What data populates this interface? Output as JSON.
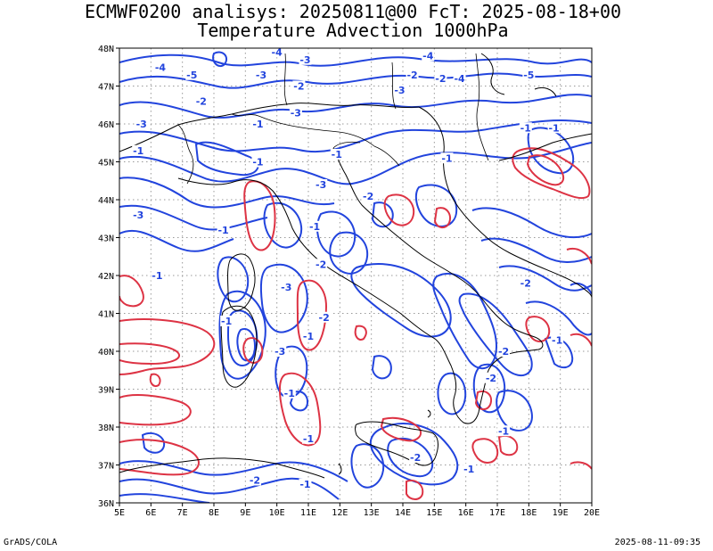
{
  "header": {
    "title": "ECMWF0200 analisys: 20250811@00 FcT: 2025-08-18+00",
    "subtitle": "Temperature Advection 1000hPa"
  },
  "footer": {
    "left": "GrADS/COLA",
    "right": "2025-08-11-09:35"
  },
  "map": {
    "lon_range": [
      5,
      20
    ],
    "lat_range": [
      36,
      48
    ],
    "x_ticks": [
      "5E",
      "6E",
      "7E",
      "8E",
      "9E",
      "10E",
      "11E",
      "12E",
      "13E",
      "14E",
      "15E",
      "16E",
      "17E",
      "18E",
      "19E",
      "20E"
    ],
    "y_ticks": [
      "36N",
      "37N",
      "38N",
      "39N",
      "40N",
      "41N",
      "42N",
      "43N",
      "44N",
      "45N",
      "46N",
      "47N",
      "48N"
    ],
    "grid": "dotted",
    "colors": {
      "negative": "#2244dd",
      "positive": "#dd3344",
      "coast": "#000000",
      "grid": "#999999"
    },
    "contour_labels": [
      {
        "text": "-4",
        "lon": 10.0,
        "lat": 47.9
      },
      {
        "text": "-3",
        "lon": 10.9,
        "lat": 47.7
      },
      {
        "text": "-4",
        "lon": 6.3,
        "lat": 47.5
      },
      {
        "text": "-5",
        "lon": 7.3,
        "lat": 47.3
      },
      {
        "text": "-3",
        "lon": 9.5,
        "lat": 47.3
      },
      {
        "text": "-2",
        "lon": 10.7,
        "lat": 47.0
      },
      {
        "text": "-4",
        "lon": 14.8,
        "lat": 47.8
      },
      {
        "text": "-2",
        "lon": 14.3,
        "lat": 47.3
      },
      {
        "text": "-3",
        "lon": 13.9,
        "lat": 46.9
      },
      {
        "text": "-2",
        "lon": 15.2,
        "lat": 47.2
      },
      {
        "text": "-4",
        "lon": 15.8,
        "lat": 47.2
      },
      {
        "text": "-5",
        "lon": 18.0,
        "lat": 47.3
      },
      {
        "text": "-2",
        "lon": 7.6,
        "lat": 46.6
      },
      {
        "text": "-3",
        "lon": 10.6,
        "lat": 46.3
      },
      {
        "text": "-3",
        "lon": 5.7,
        "lat": 46.0
      },
      {
        "text": "-1",
        "lon": 9.4,
        "lat": 46.0
      },
      {
        "text": "-1",
        "lon": 17.9,
        "lat": 45.9
      },
      {
        "text": "-1",
        "lon": 18.8,
        "lat": 45.9
      },
      {
        "text": "-1",
        "lon": 5.6,
        "lat": 45.3
      },
      {
        "text": "-1",
        "lon": 9.4,
        "lat": 45.0
      },
      {
        "text": "-1",
        "lon": 11.9,
        "lat": 45.2
      },
      {
        "text": "-1",
        "lon": 15.4,
        "lat": 45.1
      },
      {
        "text": "-3",
        "lon": 11.4,
        "lat": 44.4
      },
      {
        "text": "-2",
        "lon": 12.9,
        "lat": 44.1
      },
      {
        "text": "-3",
        "lon": 5.6,
        "lat": 43.6
      },
      {
        "text": "-1",
        "lon": 8.3,
        "lat": 43.2
      },
      {
        "text": "-1",
        "lon": 11.2,
        "lat": 43.3
      },
      {
        "text": "-2",
        "lon": 11.4,
        "lat": 42.3
      },
      {
        "text": "-1",
        "lon": 6.2,
        "lat": 42.0
      },
      {
        "text": "-3",
        "lon": 10.3,
        "lat": 41.7
      },
      {
        "text": "-2",
        "lon": 17.9,
        "lat": 41.8
      },
      {
        "text": "-1",
        "lon": 8.4,
        "lat": 40.8
      },
      {
        "text": "-2",
        "lon": 11.5,
        "lat": 40.9
      },
      {
        "text": "-1",
        "lon": 11.0,
        "lat": 40.4
      },
      {
        "text": "-1",
        "lon": 18.9,
        "lat": 40.3
      },
      {
        "text": "-2",
        "lon": 17.2,
        "lat": 40.0
      },
      {
        "text": "-3",
        "lon": 10.1,
        "lat": 40.0
      },
      {
        "text": "-2",
        "lon": 16.8,
        "lat": 39.3
      },
      {
        "text": "-1",
        "lon": 10.4,
        "lat": 38.9
      },
      {
        "text": "-1",
        "lon": 17.2,
        "lat": 37.9
      },
      {
        "text": "-1",
        "lon": 11.0,
        "lat": 37.7
      },
      {
        "text": "-2",
        "lon": 14.4,
        "lat": 37.2
      },
      {
        "text": "-1",
        "lon": 16.1,
        "lat": 36.9
      },
      {
        "text": "-2",
        "lon": 9.3,
        "lat": 36.6
      },
      {
        "text": "-1",
        "lon": 10.9,
        "lat": 36.5
      }
    ]
  }
}
